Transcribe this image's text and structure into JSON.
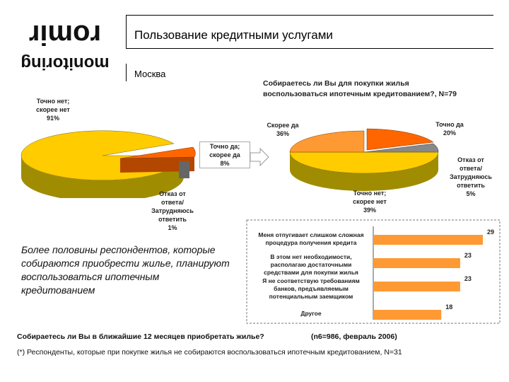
{
  "logo": {
    "top_text": "romir",
    "bottom_text": "monitoring"
  },
  "header": {
    "title": "Пользование кредитными услугами",
    "city": "Москва"
  },
  "question": {
    "line1": "Собираетесь ли Вы для покупки жилья",
    "line2": "воспользоваться ипотечным кредитованием?, N=79"
  },
  "summary_text": "Более половины респондентов, которые собираются приобрести жилье, планируют воспользоваться ипотечным кредитованием",
  "bottom_question": "Собираетесь ли Вы в ближайшие 12 месяцев приобретать жилье?",
  "bottom_n": "(n6=986, февраль 2006)",
  "footnote": "(*) Респонденты, которые при покупке жилья не собираются воспользоваться ипотечным кредитованием, N=31",
  "colors": {
    "yellow": "#ffcc00",
    "orange": "#ff6600",
    "light_orange": "#ff9933",
    "gray": "#888888",
    "olive": "#a08c00"
  },
  "chart_data": [
    {
      "type": "pie",
      "title": "",
      "slices": [
        {
          "label": "Точно нет;\nскорее нет\n91%",
          "value": 91,
          "color": "#ffcc00"
        },
        {
          "label": "Точно да;\nскорее да\n8%",
          "value": 8,
          "color": "#ff6600"
        },
        {
          "label": "Отказ от\nответа/\nЗатрудняюсь\nответить\n1%",
          "value": 1,
          "color": "#888888"
        }
      ]
    },
    {
      "type": "pie",
      "title": "Собираетесь ли Вы для покупки жилья воспользоваться ипотечным кредитованием?, N=79",
      "slices": [
        {
          "label": "Скорее да\n36%",
          "value": 36,
          "color": "#ff9933"
        },
        {
          "label": "Точно да\n20%",
          "value": 20,
          "color": "#ff6600"
        },
        {
          "label": "Отказ от\nответа/\nЗатрудняюсь\nответить\n5%",
          "value": 5,
          "color": "#888888"
        },
        {
          "label": "Точно нет;\nскорее нет\n39%",
          "value": 39,
          "color": "#ffcc00"
        }
      ]
    },
    {
      "type": "bar",
      "orientation": "horizontal",
      "categories": [
        "Меня отпугивает слишком сложная\nпроцедура получения кредита",
        "В этом нет необходимости,\nрасполагаю достаточными\nсредствами для покупки жилья",
        "Я не соответствую требованиям\nбанков, предъявляемым\nпотенциальным заемщиком",
        "Другое"
      ],
      "values": [
        29,
        23,
        23,
        18
      ],
      "color": "#ff9933"
    }
  ]
}
